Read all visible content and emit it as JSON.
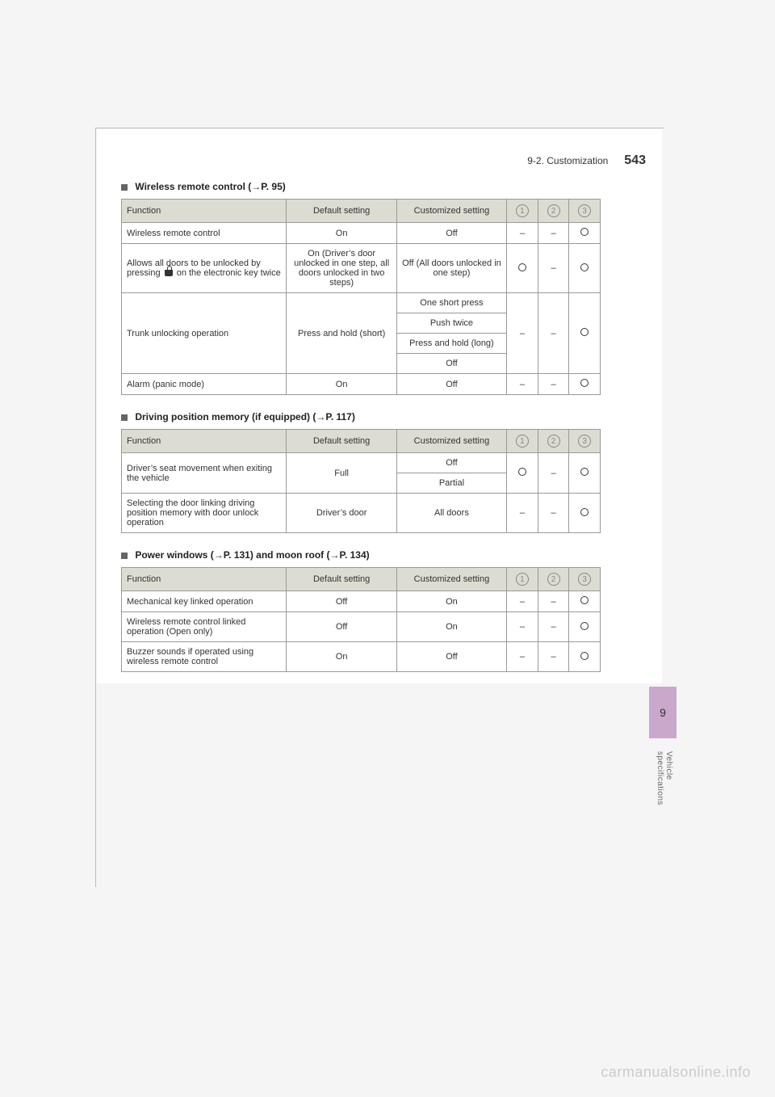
{
  "header": {
    "section": "9-2. Customization",
    "page_number": "543"
  },
  "side_tab": {
    "chapter": "9",
    "label": "Vehicle specifications"
  },
  "watermark": "carmanualsonline.info",
  "columns": {
    "fn": "Function",
    "def": "Default setting",
    "cust": "Customized setting",
    "c1": "1",
    "c2": "2",
    "c3": "3"
  },
  "sections": [
    {
      "title_prefix": "Wireless remote control (",
      "title_ref": "P. 95",
      "title_suffix": ")"
    },
    {
      "title_prefix": "Driving position memory (if equipped) (",
      "title_ref": "P. 117",
      "title_suffix": ")"
    },
    {
      "title_prefix": "Power windows (",
      "title_ref": "P. 131",
      "title_mid": ") and moon roof (",
      "title_ref2": "P. 134",
      "title_suffix": ")"
    }
  ],
  "table1": {
    "rows": [
      {
        "fn": "Wireless remote control",
        "def": "On",
        "cust": "Off",
        "c1": "–",
        "c2": "–",
        "c3": "O"
      },
      {
        "fn_pre": "Allows all doors to be unlocked by pressing ",
        "fn_post": " on the electronic key twice",
        "def": "On (Driver’s door unlocked in one step, all doors unlocked in two steps)",
        "cust": "Off (All doors unlocked in one step)",
        "c1": "O",
        "c2": "–",
        "c3": "O"
      },
      {
        "fn": "Trunk unlocking operation",
        "def": "Press and hold (short)",
        "cust_list": [
          "One short press",
          "Push twice",
          "Press and hold (long)",
          "Off"
        ],
        "c1": "–",
        "c2": "–",
        "c3": "O"
      },
      {
        "fn": "Alarm (panic mode)",
        "def": "On",
        "cust": "Off",
        "c1": "–",
        "c2": "–",
        "c3": "O"
      }
    ]
  },
  "table2": {
    "rows": [
      {
        "fn": "Driver’s seat movement when exiting the vehicle",
        "def": "Full",
        "cust_list": [
          "Off",
          "Partial"
        ],
        "c1": "O",
        "c2": "–",
        "c3": "O"
      },
      {
        "fn": "Selecting the door linking driving position memory with door unlock operation",
        "def": "Driver’s door",
        "cust": "All doors",
        "c1": "–",
        "c2": "–",
        "c3": "O"
      }
    ]
  },
  "table3": {
    "rows": [
      {
        "fn": "Mechanical key linked operation",
        "def": "Off",
        "cust": "On",
        "c1": "–",
        "c2": "–",
        "c3": "O"
      },
      {
        "fn": "Wireless remote control linked operation (Open only)",
        "def": "Off",
        "cust": "On",
        "c1": "–",
        "c2": "–",
        "c3": "O"
      },
      {
        "fn": "Buzzer sounds if operated using wireless remote control",
        "def": "On",
        "cust": "Off",
        "c1": "–",
        "c2": "–",
        "c3": "O"
      }
    ]
  }
}
